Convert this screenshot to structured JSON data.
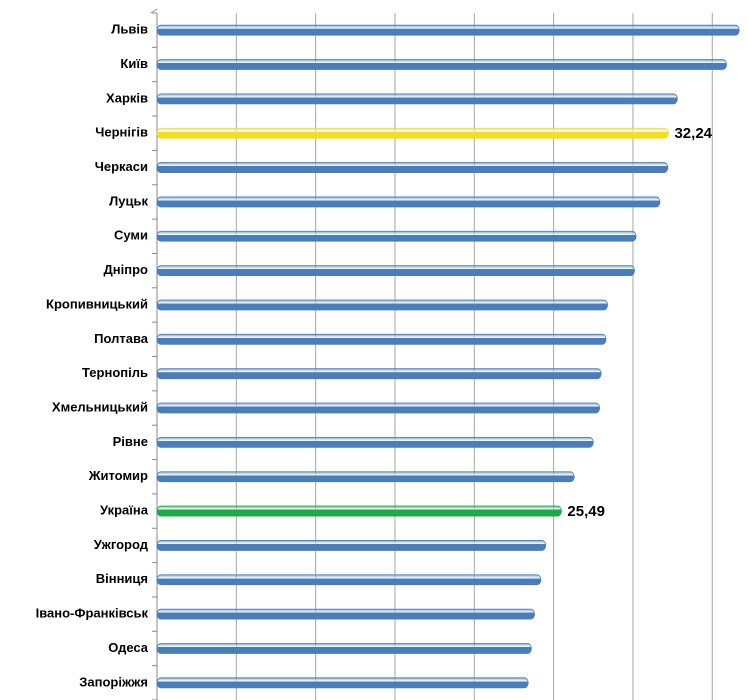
{
  "chart_data": {
    "type": "bar",
    "orientation": "horizontal",
    "categories": [
      "Львів",
      "Київ",
      "Харків",
      "Чернігів",
      "Черкаси",
      "Луцьк",
      "Суми",
      "Дніпро",
      "Кропивницький",
      "Полтава",
      "Тернопіль",
      "Хмельницький",
      "Рівне",
      "Житомир",
      "Україна",
      "Ужгород",
      "Вінниця",
      "Івано-Франківськ",
      "Одеса",
      "Запоріжжя"
    ],
    "values": [
      36.7,
      35.9,
      32.8,
      32.24,
      32.2,
      31.7,
      30.2,
      30.1,
      28.4,
      28.3,
      28.0,
      27.9,
      27.5,
      26.3,
      25.49,
      24.5,
      24.2,
      23.8,
      23.6,
      23.4
    ],
    "value_labels": [
      null,
      null,
      null,
      "32,24",
      null,
      null,
      null,
      null,
      null,
      null,
      null,
      null,
      null,
      null,
      "25,49",
      null,
      null,
      null,
      null,
      null
    ],
    "colors": [
      "#4a7ebb",
      "#4a7ebb",
      "#4a7ebb",
      "#f0e020",
      "#4a7ebb",
      "#4a7ebb",
      "#4a7ebb",
      "#4a7ebb",
      "#4a7ebb",
      "#4a7ebb",
      "#4a7ebb",
      "#4a7ebb",
      "#4a7ebb",
      "#4a7ebb",
      "#1faa4a",
      "#4a7ebb",
      "#4a7ebb",
      "#4a7ebb",
      "#4a7ebb",
      "#4a7ebb"
    ],
    "xlim": [
      0,
      37
    ],
    "xticks": [
      0,
      5,
      10,
      15,
      20,
      25,
      30,
      35
    ],
    "grid": true
  }
}
